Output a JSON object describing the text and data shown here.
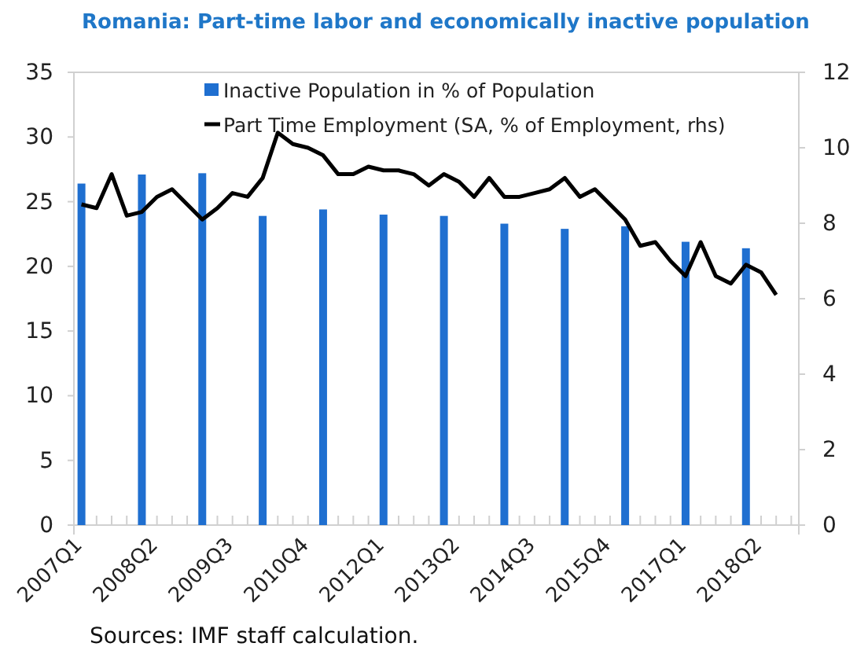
{
  "chart_data": {
    "type": "bar",
    "title": "Romania: Part-time labor and economically inactive population",
    "categories": [
      "2007Q1",
      null,
      null,
      null,
      null,
      "2008Q2",
      null,
      null,
      null,
      null,
      "2009Q3",
      null,
      null,
      null,
      null,
      "2010Q4",
      null,
      null,
      null,
      null,
      "2012Q1",
      null,
      null,
      null,
      null,
      "2013Q2",
      null,
      null,
      null,
      null,
      "2014Q3",
      null,
      null,
      null,
      null,
      "2015Q4",
      null,
      null,
      null,
      null,
      "2017Q1",
      null,
      null,
      null,
      null,
      "2018Q2",
      null,
      null
    ],
    "series": [
      {
        "name": "Inactive Population in % of Population",
        "color": "#1f6fd0",
        "values": [
          26.4,
          null,
          null,
          null,
          27.1,
          null,
          null,
          null,
          27.2,
          null,
          null,
          null,
          23.9,
          null,
          null,
          null,
          24.4,
          null,
          null,
          null,
          24.0,
          null,
          null,
          null,
          23.9,
          null,
          null,
          null,
          23.3,
          null,
          null,
          null,
          22.9,
          null,
          null,
          null,
          23.1,
          null,
          null,
          null,
          21.9,
          null,
          null,
          null,
          21.4,
          null,
          null,
          null
        ]
      },
      {
        "name": "Part Time Employment (SA, % of Employment, rhs)",
        "type": "line",
        "axis": "y2",
        "color": "#000000",
        "values": [
          8.5,
          8.4,
          9.3,
          8.2,
          8.3,
          8.7,
          8.9,
          8.5,
          8.1,
          8.4,
          8.8,
          8.7,
          9.2,
          10.4,
          10.1,
          10.0,
          9.8,
          9.3,
          9.3,
          9.5,
          9.4,
          9.4,
          9.3,
          9.0,
          9.3,
          9.1,
          8.7,
          9.2,
          8.7,
          8.7,
          8.8,
          8.9,
          9.2,
          8.7,
          8.9,
          8.5,
          8.1,
          7.4,
          7.5,
          7.0,
          6.6,
          7.5,
          6.6,
          6.4,
          6.9,
          6.7,
          6.1,
          null
        ]
      }
    ],
    "ylim": [
      0,
      35
    ],
    "yticks": [
      0,
      5,
      10,
      15,
      20,
      25,
      30,
      35
    ],
    "y2lim": [
      0,
      12
    ],
    "y2ticks": [
      0,
      2,
      4,
      6,
      8,
      10,
      12
    ],
    "legend": "top",
    "annotations": [
      "Sources: IMF staff calculation."
    ]
  }
}
